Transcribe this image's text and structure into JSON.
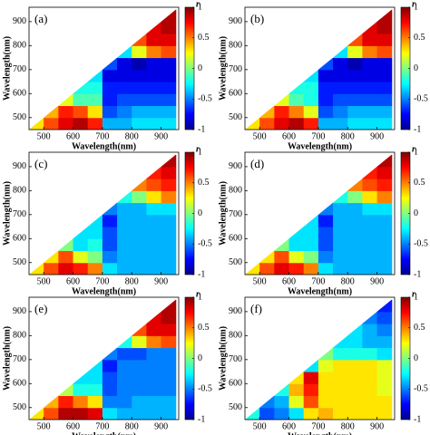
{
  "chart_data": [
    {
      "type": "heatmap",
      "label": "(a)",
      "xlabel": "Wavelength(nm)",
      "ylabel": "Wavelength(nm)",
      "xlim": [
        450,
        960
      ],
      "ylim": [
        450,
        960
      ],
      "xticks": [
        500,
        600,
        700,
        800,
        900
      ],
      "yticks": [
        500,
        600,
        700,
        800,
        900
      ],
      "colorbar": {
        "label": "r",
        "lim": [
          -1,
          1
        ],
        "ticks": [
          -1,
          -0.5,
          0,
          0.5,
          1
        ]
      },
      "x": [
        475,
        525,
        575,
        625,
        675,
        725,
        775,
        825,
        875,
        925
      ],
      "y": [
        475,
        525,
        575,
        625,
        675,
        725,
        775,
        825,
        875,
        925
      ],
      "z": [
        [
          0.3,
          0.6,
          0.8,
          0.9,
          0.7,
          -0.4,
          -0.4,
          -0.3,
          -0.3,
          -0.3
        ],
        [
          null,
          0.4,
          0.7,
          0.6,
          0.3,
          -0.6,
          -0.5,
          -0.4,
          -0.4,
          -0.4
        ],
        [
          null,
          null,
          0.2,
          -0.1,
          -0.1,
          -0.7,
          -0.6,
          -0.6,
          -0.6,
          -0.6
        ],
        [
          null,
          null,
          null,
          -0.2,
          -0.2,
          -0.7,
          -0.7,
          -0.7,
          -0.7,
          -0.7
        ],
        [
          null,
          null,
          null,
          null,
          -0.3,
          -0.8,
          -0.8,
          -0.8,
          -0.8,
          -0.8
        ],
        [
          null,
          null,
          null,
          null,
          null,
          -0.6,
          -0.8,
          -0.9,
          -0.8,
          -0.8
        ],
        [
          null,
          null,
          null,
          null,
          null,
          null,
          -0.3,
          0.2,
          0.5,
          0.6
        ],
        [
          null,
          null,
          null,
          null,
          null,
          null,
          null,
          0.6,
          0.8,
          0.8
        ],
        [
          null,
          null,
          null,
          null,
          null,
          null,
          null,
          null,
          0.8,
          0.9
        ],
        [
          null,
          null,
          null,
          null,
          null,
          null,
          null,
          null,
          null,
          0.9
        ]
      ]
    },
    {
      "type": "heatmap",
      "label": "(b)",
      "xlabel": "Wavelength(nm)",
      "ylabel": "Wavelength(nm)",
      "xlim": [
        450,
        960
      ],
      "ylim": [
        450,
        960
      ],
      "xticks": [
        500,
        600,
        700,
        800,
        900
      ],
      "yticks": [
        500,
        600,
        700,
        800,
        900
      ],
      "colorbar": {
        "label": "r",
        "lim": [
          -1,
          1
        ],
        "ticks": [
          -1,
          -0.5,
          0,
          0.5,
          1
        ]
      },
      "x": [
        475,
        525,
        575,
        625,
        675,
        725,
        775,
        825,
        875,
        925
      ],
      "y": [
        475,
        525,
        575,
        625,
        675,
        725,
        775,
        825,
        875,
        925
      ],
      "z": [
        [
          0.3,
          0.6,
          0.8,
          0.9,
          0.7,
          -0.4,
          -0.4,
          -0.3,
          -0.3,
          -0.3
        ],
        [
          null,
          0.4,
          0.7,
          0.5,
          0.2,
          -0.6,
          -0.5,
          -0.4,
          -0.4,
          -0.4
        ],
        [
          null,
          null,
          0.2,
          -0.1,
          -0.2,
          -0.7,
          -0.6,
          -0.6,
          -0.6,
          -0.6
        ],
        [
          null,
          null,
          null,
          -0.2,
          -0.2,
          -0.7,
          -0.7,
          -0.7,
          -0.7,
          -0.7
        ],
        [
          null,
          null,
          null,
          null,
          -0.3,
          -0.8,
          -0.8,
          -0.8,
          -0.8,
          -0.8
        ],
        [
          null,
          null,
          null,
          null,
          null,
          -0.6,
          -0.8,
          -0.9,
          -0.8,
          -0.8
        ],
        [
          null,
          null,
          null,
          null,
          null,
          null,
          -0.3,
          0.2,
          0.5,
          0.6
        ],
        [
          null,
          null,
          null,
          null,
          null,
          null,
          null,
          0.6,
          0.8,
          0.8
        ],
        [
          null,
          null,
          null,
          null,
          null,
          null,
          null,
          null,
          0.8,
          0.9
        ],
        [
          null,
          null,
          null,
          null,
          null,
          null,
          null,
          null,
          null,
          0.9
        ]
      ]
    },
    {
      "type": "heatmap",
      "label": "(c)",
      "xlabel": "Wavelength(nm)",
      "ylabel": "Wavelength(nm)",
      "xlim": [
        450,
        960
      ],
      "ylim": [
        450,
        960
      ],
      "xticks": [
        500,
        600,
        700,
        800,
        900
      ],
      "yticks": [
        500,
        600,
        700,
        800,
        900
      ],
      "colorbar": {
        "label": "r",
        "lim": [
          -1,
          1
        ],
        "ticks": [
          -1,
          -0.5,
          0,
          0.5,
          1
        ]
      },
      "x": [
        475,
        525,
        575,
        625,
        675,
        725,
        775,
        825,
        875,
        925
      ],
      "y": [
        475,
        525,
        575,
        625,
        675,
        725,
        775,
        825,
        875,
        925
      ],
      "z": [
        [
          0.3,
          0.6,
          0.8,
          0.7,
          0.5,
          -0.3,
          -0.4,
          -0.4,
          -0.4,
          -0.4
        ],
        [
          null,
          0.3,
          0.6,
          0.2,
          0.0,
          -0.5,
          -0.4,
          -0.4,
          -0.4,
          -0.4
        ],
        [
          null,
          null,
          0.0,
          -0.3,
          -0.2,
          -0.6,
          -0.4,
          -0.4,
          -0.4,
          -0.4
        ],
        [
          null,
          null,
          null,
          -0.3,
          -0.3,
          -0.6,
          -0.4,
          -0.4,
          -0.4,
          -0.4
        ],
        [
          null,
          null,
          null,
          null,
          -0.3,
          -0.7,
          -0.4,
          -0.4,
          -0.4,
          -0.4
        ],
        [
          null,
          null,
          null,
          null,
          null,
          -0.5,
          -0.4,
          -0.4,
          -0.3,
          -0.3
        ],
        [
          null,
          null,
          null,
          null,
          null,
          null,
          -0.2,
          0.0,
          0.3,
          0.5
        ],
        [
          null,
          null,
          null,
          null,
          null,
          null,
          null,
          0.5,
          0.6,
          0.7
        ],
        [
          null,
          null,
          null,
          null,
          null,
          null,
          null,
          null,
          0.7,
          0.8
        ],
        [
          null,
          null,
          null,
          null,
          null,
          null,
          null,
          null,
          null,
          0.9
        ]
      ]
    },
    {
      "type": "heatmap",
      "label": "(d)",
      "xlabel": "Wavelength(nm)",
      "ylabel": "Wavelength(nm)",
      "xlim": [
        450,
        960
      ],
      "ylim": [
        450,
        960
      ],
      "xticks": [
        500,
        600,
        700,
        800,
        900
      ],
      "yticks": [
        500,
        600,
        700,
        800,
        900
      ],
      "colorbar": {
        "label": "r",
        "lim": [
          -1,
          1
        ],
        "ticks": [
          -1,
          -0.5,
          0,
          0.5,
          1
        ]
      },
      "x": [
        475,
        525,
        575,
        625,
        675,
        725,
        775,
        825,
        875,
        925
      ],
      "y": [
        475,
        525,
        575,
        625,
        675,
        725,
        775,
        825,
        875,
        925
      ],
      "z": [
        [
          0.3,
          0.6,
          0.8,
          0.7,
          0.5,
          -0.3,
          -0.4,
          -0.4,
          -0.4,
          -0.4
        ],
        [
          null,
          0.3,
          0.6,
          0.2,
          0.0,
          -0.5,
          -0.4,
          -0.4,
          -0.4,
          -0.4
        ],
        [
          null,
          null,
          0.0,
          -0.3,
          -0.3,
          -0.6,
          -0.4,
          -0.4,
          -0.4,
          -0.4
        ],
        [
          null,
          null,
          null,
          -0.3,
          -0.3,
          -0.6,
          -0.4,
          -0.4,
          -0.4,
          -0.4
        ],
        [
          null,
          null,
          null,
          null,
          -0.3,
          -0.7,
          -0.4,
          -0.4,
          -0.4,
          -0.4
        ],
        [
          null,
          null,
          null,
          null,
          null,
          -0.5,
          -0.4,
          -0.4,
          -0.3,
          -0.3
        ],
        [
          null,
          null,
          null,
          null,
          null,
          null,
          -0.2,
          0.0,
          0.3,
          0.5
        ],
        [
          null,
          null,
          null,
          null,
          null,
          null,
          null,
          0.5,
          0.6,
          0.7
        ],
        [
          null,
          null,
          null,
          null,
          null,
          null,
          null,
          null,
          0.7,
          0.8
        ],
        [
          null,
          null,
          null,
          null,
          null,
          null,
          null,
          null,
          null,
          0.9
        ]
      ]
    },
    {
      "type": "heatmap",
      "label": "(e)",
      "xlabel": "Wavelength(nm)",
      "ylabel": "Wavelength(nm)",
      "xlim": [
        450,
        960
      ],
      "ylim": [
        450,
        960
      ],
      "xticks": [
        500,
        600,
        700,
        800,
        900
      ],
      "yticks": [
        500,
        600,
        700,
        800,
        900
      ],
      "colorbar": {
        "label": "r",
        "lim": [
          -1,
          1
        ],
        "ticks": [
          -1,
          -0.5,
          0,
          0.5,
          1
        ]
      },
      "x": [
        475,
        525,
        575,
        625,
        675,
        725,
        775,
        825,
        875,
        925
      ],
      "y": [
        475,
        525,
        575,
        625,
        675,
        725,
        775,
        825,
        875,
        925
      ],
      "z": [
        [
          0.3,
          0.6,
          0.9,
          0.9,
          0.8,
          -0.3,
          -0.4,
          -0.4,
          -0.4,
          -0.4
        ],
        [
          null,
          0.4,
          0.7,
          0.5,
          0.3,
          -0.5,
          -0.5,
          -0.4,
          -0.4,
          -0.4
        ],
        [
          null,
          null,
          0.1,
          -0.2,
          -0.2,
          -0.6,
          -0.5,
          -0.5,
          -0.5,
          -0.5
        ],
        [
          null,
          null,
          null,
          -0.3,
          -0.3,
          -0.6,
          -0.5,
          -0.5,
          -0.5,
          -0.5
        ],
        [
          null,
          null,
          null,
          null,
          -0.3,
          -0.7,
          -0.5,
          -0.5,
          -0.5,
          -0.5
        ],
        [
          null,
          null,
          null,
          null,
          null,
          -0.5,
          -0.6,
          -0.6,
          -0.5,
          -0.5
        ],
        [
          null,
          null,
          null,
          null,
          null,
          null,
          -0.2,
          0.2,
          0.5,
          0.6
        ],
        [
          null,
          null,
          null,
          null,
          null,
          null,
          null,
          0.6,
          0.8,
          0.8
        ],
        [
          null,
          null,
          null,
          null,
          null,
          null,
          null,
          null,
          0.8,
          0.9
        ],
        [
          null,
          null,
          null,
          null,
          null,
          null,
          null,
          null,
          null,
          0.9
        ]
      ]
    },
    {
      "type": "heatmap",
      "label": "(f)",
      "xlabel": "Wavelength(nm)",
      "ylabel": "Wavelength(nm)",
      "xlim": [
        450,
        960
      ],
      "ylim": [
        450,
        960
      ],
      "xticks": [
        500,
        600,
        700,
        800,
        900
      ],
      "yticks": [
        500,
        600,
        700,
        800,
        900
      ],
      "colorbar": {
        "label": "r",
        "lim": [
          -1,
          1
        ],
        "ticks": [
          -1,
          -0.5,
          0,
          0.5,
          1
        ]
      },
      "x": [
        475,
        525,
        575,
        625,
        675,
        725,
        775,
        825,
        875,
        925
      ],
      "y": [
        475,
        525,
        575,
        625,
        675,
        725,
        775,
        825,
        875,
        925
      ],
      "z": [
        [
          -0.2,
          -0.6,
          -0.5,
          -0.3,
          0.3,
          0.4,
          0.3,
          0.3,
          0.3,
          0.3
        ],
        [
          null,
          -0.5,
          -0.4,
          0.2,
          0.6,
          0.3,
          0.3,
          0.3,
          0.3,
          0.3
        ],
        [
          null,
          null,
          -0.2,
          0.4,
          0.7,
          0.3,
          0.3,
          0.3,
          0.3,
          0.2
        ],
        [
          null,
          null,
          null,
          0.3,
          0.8,
          0.3,
          0.3,
          0.3,
          0.3,
          0.2
        ],
        [
          null,
          null,
          null,
          null,
          -0.3,
          0.2,
          0.3,
          0.3,
          0.3,
          0.2
        ],
        [
          null,
          null,
          null,
          null,
          null,
          0.0,
          -0.2,
          -0.2,
          -0.2,
          -0.3
        ],
        [
          null,
          null,
          null,
          null,
          null,
          null,
          -0.3,
          -0.3,
          -0.4,
          -0.4
        ],
        [
          null,
          null,
          null,
          null,
          null,
          null,
          null,
          -0.3,
          -0.4,
          -0.5
        ],
        [
          null,
          null,
          null,
          null,
          null,
          null,
          null,
          null,
          -0.5,
          -0.6
        ],
        [
          null,
          null,
          null,
          null,
          null,
          null,
          null,
          null,
          null,
          -0.7
        ]
      ]
    }
  ]
}
